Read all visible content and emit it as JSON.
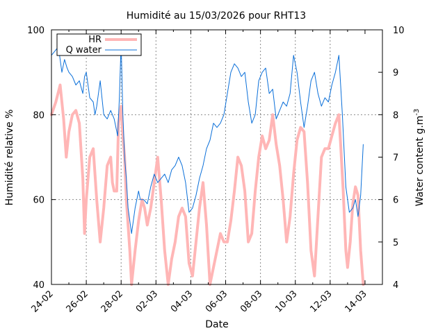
{
  "chart_data": {
    "type": "line",
    "title": "Humidité au 15/03/2026 pour RHT13",
    "xlabel": "Date",
    "ylabel": "Humidité relative %",
    "y2label": "Water content g.m",
    "y2label_superscript": "-3",
    "xlim": [
      0,
      19
    ],
    "ylim": [
      40,
      100
    ],
    "y2lim": [
      4,
      10
    ],
    "x_tick_values": [
      0,
      2,
      4,
      6,
      8,
      10,
      12,
      14,
      16,
      18
    ],
    "x_tick_labels": [
      "24-02",
      "26-02",
      "28-02",
      "02-03",
      "04-03",
      "06-03",
      "08-03",
      "10-03",
      "12-03",
      "14-03"
    ],
    "y_ticks": [
      40,
      60,
      80,
      100
    ],
    "y2_ticks": [
      4,
      5,
      6,
      7,
      8,
      9,
      10
    ],
    "grid": true,
    "legend_position": "top-left",
    "series": [
      {
        "name": "HR",
        "axis": "left",
        "color": "#ffb6b6",
        "x": [
          0,
          0.25,
          0.5,
          0.7,
          0.85,
          1.0,
          1.2,
          1.4,
          1.6,
          1.8,
          1.9,
          2.0,
          2.2,
          2.4,
          2.5,
          2.6,
          2.8,
          3.0,
          3.2,
          3.4,
          3.5,
          3.6,
          3.75,
          3.85,
          4.0,
          4.1,
          4.2,
          4.3,
          4.5,
          4.6,
          4.8,
          5.0,
          5.2,
          5.35,
          5.5,
          5.7,
          5.9,
          6.1,
          6.3,
          6.5,
          6.7,
          6.9,
          7.1,
          7.3,
          7.5,
          7.7,
          7.9,
          8.1,
          8.3,
          8.5,
          8.7,
          8.9,
          9.1,
          9.3,
          9.5,
          9.7,
          9.9,
          10.1,
          10.3,
          10.5,
          10.7,
          10.9,
          11.1,
          11.3,
          11.5,
          11.7,
          11.9,
          12.1,
          12.3,
          12.5,
          12.7,
          12.9,
          13.1,
          13.3,
          13.5,
          13.7,
          13.9,
          14.1,
          14.3,
          14.5,
          14.7,
          14.9,
          15.1,
          15.3,
          15.5,
          15.7,
          15.9,
          16.1,
          16.3,
          16.5,
          16.6,
          16.75,
          16.9,
          17.0,
          17.15,
          17.3,
          17.45,
          17.6,
          17.75,
          17.9
        ],
        "y": [
          80,
          83,
          87,
          79,
          70,
          76,
          80,
          81,
          78,
          65,
          52,
          60,
          70,
          72,
          66,
          60,
          50,
          58,
          68,
          70,
          64,
          62,
          62,
          78,
          82,
          75,
          70,
          60,
          48,
          40,
          48,
          55,
          60,
          58,
          54,
          58,
          64,
          70,
          60,
          48,
          40,
          46,
          50,
          56,
          58,
          56,
          45,
          42,
          50,
          58,
          64,
          54,
          40,
          44,
          48,
          52,
          50,
          50,
          55,
          62,
          70,
          68,
          62,
          50,
          52,
          62,
          70,
          75,
          72,
          74,
          80,
          73,
          68,
          60,
          50,
          56,
          66,
          74,
          77,
          76,
          64,
          48,
          42,
          56,
          70,
          72,
          72,
          75,
          78,
          80,
          73,
          62,
          48,
          44,
          50,
          59,
          63,
          61,
          48,
          40
        ]
      },
      {
        "name": "Q water",
        "axis": "right",
        "color": "#0a6fd9",
        "x": [
          0,
          0.2,
          0.4,
          0.6,
          0.75,
          0.9,
          1.0,
          1.2,
          1.4,
          1.6,
          1.8,
          1.9,
          2.0,
          2.2,
          2.4,
          2.5,
          2.6,
          2.8,
          3.0,
          3.2,
          3.4,
          3.6,
          3.8,
          3.9,
          4.0,
          4.1,
          4.2,
          4.3,
          4.4,
          4.6,
          4.8,
          5.0,
          5.1,
          5.3,
          5.5,
          5.7,
          5.9,
          6.1,
          6.3,
          6.5,
          6.7,
          6.9,
          7.1,
          7.3,
          7.5,
          7.7,
          7.9,
          8.1,
          8.3,
          8.5,
          8.7,
          8.9,
          9.1,
          9.3,
          9.5,
          9.7,
          9.9,
          10.1,
          10.3,
          10.5,
          10.7,
          10.9,
          11.1,
          11.3,
          11.5,
          11.7,
          11.9,
          12.1,
          12.3,
          12.5,
          12.7,
          12.9,
          13.1,
          13.3,
          13.5,
          13.7,
          13.9,
          14.1,
          14.3,
          14.5,
          14.7,
          14.9,
          15.1,
          15.3,
          15.5,
          15.7,
          15.9,
          16.1,
          16.3,
          16.5,
          16.7,
          16.9,
          17.1,
          17.3,
          17.45,
          17.6,
          17.75,
          17.9
        ],
        "y": [
          9.4,
          9.5,
          9.6,
          9.0,
          9.3,
          9.1,
          9.0,
          8.9,
          8.7,
          8.8,
          8.5,
          8.9,
          9.0,
          8.4,
          8.3,
          8.0,
          8.2,
          8.8,
          8.0,
          7.9,
          8.1,
          7.9,
          7.5,
          8.4,
          9.7,
          8.0,
          7.0,
          6.5,
          5.8,
          5.2,
          5.8,
          6.2,
          6.0,
          6.0,
          5.9,
          6.3,
          6.6,
          6.4,
          6.5,
          6.6,
          6.4,
          6.7,
          6.8,
          7.0,
          6.8,
          6.4,
          5.7,
          5.8,
          6.1,
          6.5,
          6.8,
          7.2,
          7.4,
          7.8,
          7.7,
          7.8,
          8.0,
          8.5,
          9.0,
          9.2,
          9.1,
          8.9,
          9.0,
          8.3,
          7.8,
          8.0,
          8.8,
          9.0,
          9.1,
          8.5,
          8.6,
          7.9,
          8.1,
          8.3,
          8.2,
          8.5,
          9.4,
          9.0,
          8.3,
          7.7,
          8.2,
          8.8,
          9.0,
          8.5,
          8.2,
          8.4,
          8.3,
          8.7,
          9.0,
          9.4,
          8.0,
          6.3,
          5.7,
          5.8,
          6.0,
          5.6,
          6.1,
          7.3
        ]
      }
    ]
  }
}
